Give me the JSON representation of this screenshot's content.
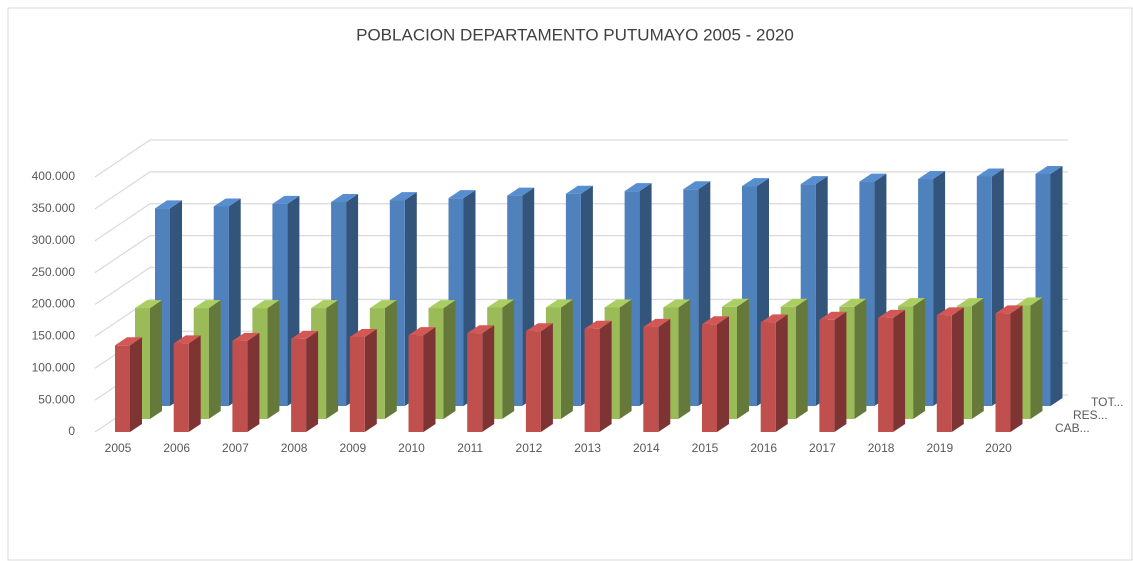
{
  "chart_data": {
    "type": "bar3d",
    "title": "POBLACION DEPARTAMENTO PUTUMAYO 2005 - 2020",
    "categories": [
      "2005",
      "2006",
      "2007",
      "2008",
      "2009",
      "2010",
      "2011",
      "2012",
      "2013",
      "2014",
      "2015",
      "2016",
      "2017",
      "2018",
      "2019",
      "2020"
    ],
    "series": [
      {
        "name": "TOT...",
        "color": "#4f81bd",
        "values": [
          310000,
          313000,
          317000,
          320000,
          323000,
          326000,
          330000,
          333000,
          337000,
          340000,
          345000,
          348000,
          352000,
          356000,
          360000,
          364000
        ]
      },
      {
        "name": "RES...",
        "color": "#9bbb59",
        "values": [
          174000,
          174000,
          174000,
          174000,
          174000,
          174000,
          175000,
          175000,
          175000,
          175000,
          176000,
          176000,
          176000,
          177000,
          177000,
          178000
        ]
      },
      {
        "name": "CAB...",
        "color": "#c0504d",
        "values": [
          136000,
          139000,
          143000,
          146000,
          149000,
          152000,
          155000,
          158000,
          162000,
          165000,
          169000,
          172000,
          176000,
          179000,
          183000,
          186000
        ]
      }
    ],
    "ylim": [
      0,
      400000
    ],
    "yticks": [
      0,
      {
        "value": 50000,
        "label": "50.000"
      },
      {
        "value": 100000,
        "label": "100.000"
      },
      {
        "value": 150000,
        "label": "150.000"
      },
      {
        "value": 200000,
        "label": "200.000"
      },
      {
        "value": 250000,
        "label": "250.000"
      },
      {
        "value": 300000,
        "label": "300.000"
      },
      {
        "value": 350000,
        "label": "350.000"
      },
      {
        "value": 400000,
        "label": "400.000"
      }
    ],
    "grid": true
  }
}
